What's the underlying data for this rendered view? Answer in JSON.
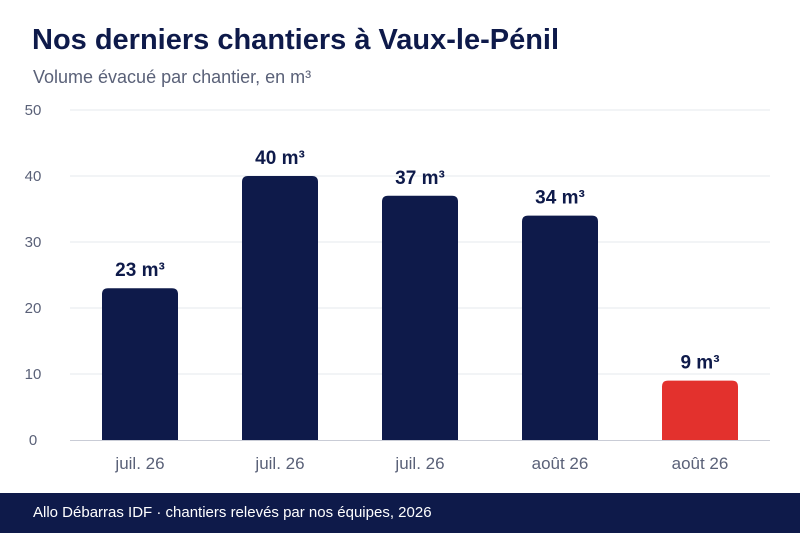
{
  "header": {
    "title": "Nos derniers chantiers à Vaux-le-Pénil",
    "subtitle": "Volume évacué par chantier, en m³"
  },
  "footer": {
    "text": "Allo Débarras IDF · chantiers relevés par nos équipes, 2026"
  },
  "colors": {
    "bar_default": "#0e1a4a",
    "bar_highlight": "#e3312d",
    "axis_text": "#5a6178",
    "grid": "#e6e8ee",
    "label": "#0e1a4a"
  },
  "chart_data": {
    "type": "bar",
    "title": "Nos derniers chantiers à Vaux-le-Pénil",
    "subtitle": "Volume évacué par chantier, en m³",
    "xlabel": "",
    "ylabel": "",
    "ylim": [
      0,
      50
    ],
    "yticks": [
      0,
      10,
      20,
      30,
      40,
      50
    ],
    "grid": true,
    "categories": [
      "juil. 26",
      "juil. 26",
      "juil. 26",
      "août 26",
      "août 26"
    ],
    "values": [
      23,
      40,
      37,
      34,
      9
    ],
    "data_labels": [
      "23 m³",
      "40 m³",
      "37 m³",
      "34 m³",
      "9 m³"
    ],
    "highlight_index": 4
  }
}
